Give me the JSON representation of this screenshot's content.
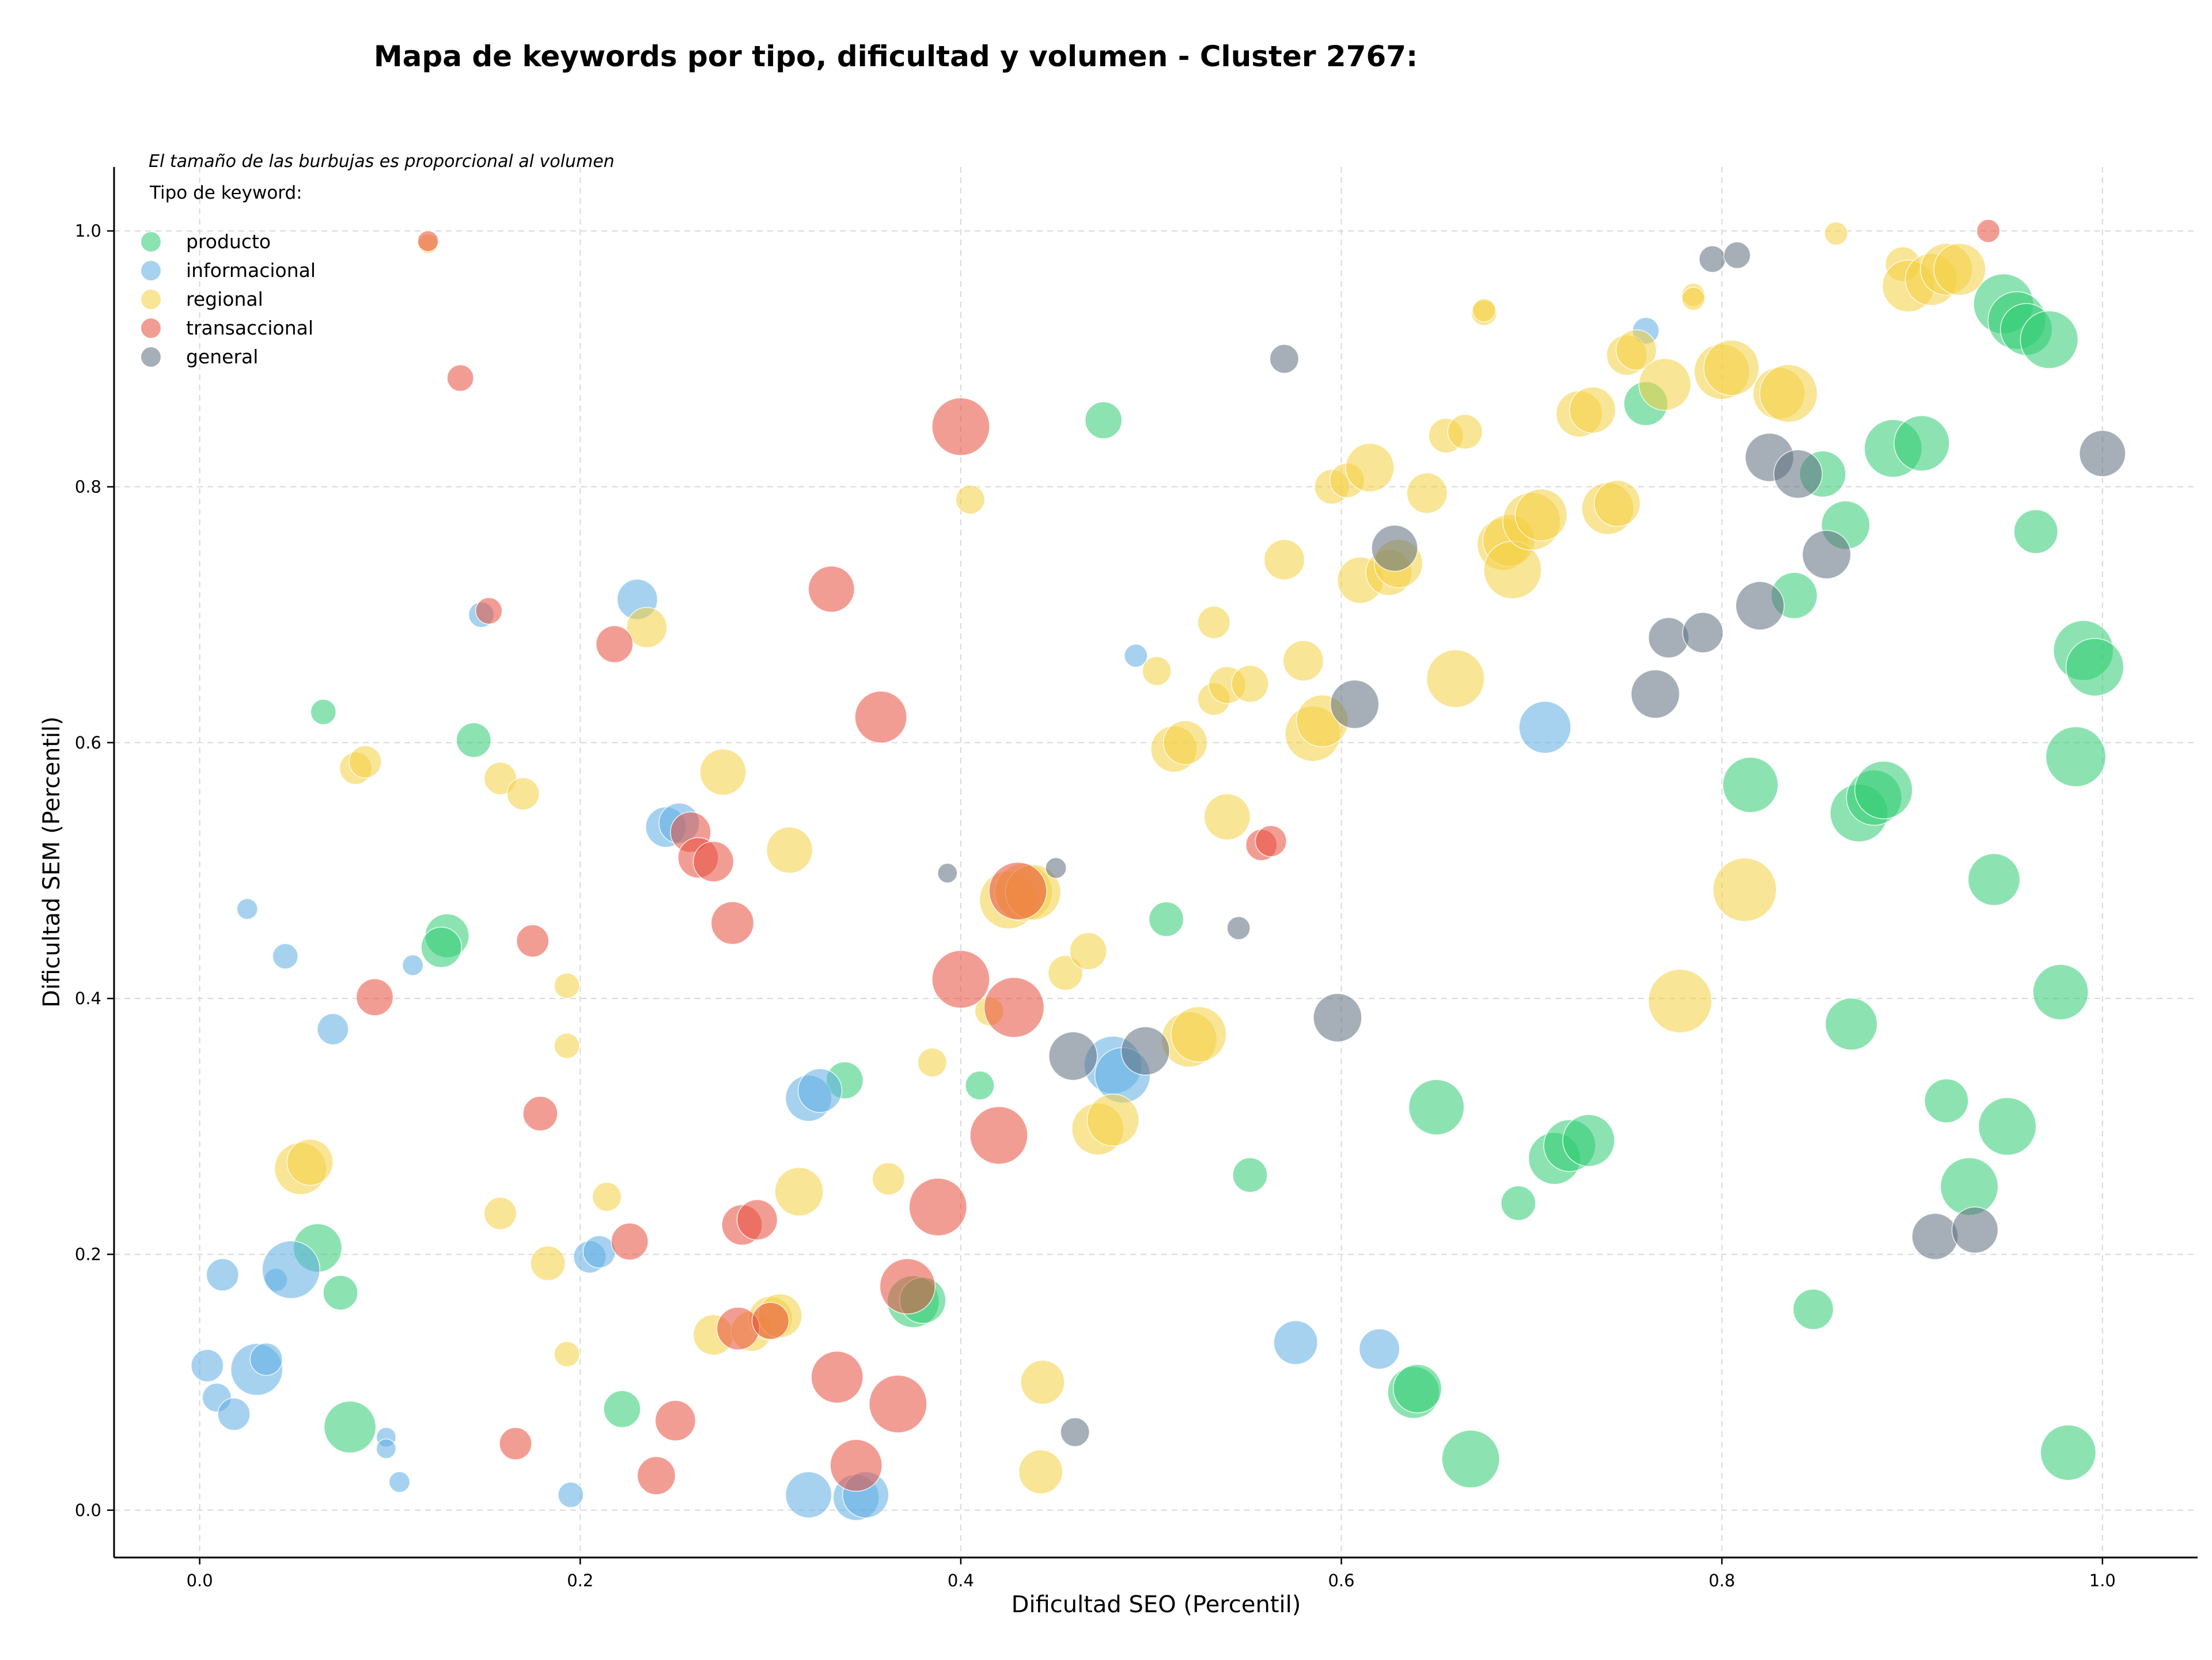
{
  "chart_data": {
    "type": "scatter",
    "title": "Mapa de keywords por tipo, dificultad y volumen - Cluster 2767:",
    "xlabel": "Dificultad SEO (Percentil)",
    "ylabel": "Dificultad SEM (Percentil)",
    "xlim": [
      -0.045,
      1.05
    ],
    "ylim": [
      -0.037,
      1.05
    ],
    "x_ticks": [
      "0.0",
      "0.2",
      "0.4",
      "0.6",
      "0.8",
      "1.0"
    ],
    "y_ticks": [
      "0.0",
      "0.2",
      "0.4",
      "0.6",
      "0.8",
      "1.0"
    ],
    "grid": true,
    "size_note": "El tamaño de las burbujas es proporcional al volumen",
    "legend_title": "Tipo de keyword:",
    "legend_position": "top-left",
    "series": [
      {
        "name": "producto",
        "color": "#2ecc71",
        "points": [
          [
            0.065,
            0.624,
            22
          ],
          [
            0.144,
            0.602,
            30
          ],
          [
            0.13,
            0.449,
            38
          ],
          [
            0.127,
            0.44,
            35
          ],
          [
            0.062,
            0.205,
            42
          ],
          [
            0.074,
            0.17,
            30
          ],
          [
            0.079,
            0.065,
            45
          ],
          [
            0.222,
            0.079,
            32
          ],
          [
            0.339,
            0.336,
            32
          ],
          [
            0.375,
            0.163,
            45
          ],
          [
            0.38,
            0.164,
            40
          ],
          [
            0.41,
            0.332,
            25
          ],
          [
            0.475,
            0.852,
            32
          ],
          [
            0.508,
            0.462,
            30
          ],
          [
            0.552,
            0.262,
            30
          ],
          [
            0.638,
            0.092,
            45
          ],
          [
            0.64,
            0.095,
            42
          ],
          [
            0.65,
            0.315,
            48
          ],
          [
            0.668,
            0.04,
            50
          ],
          [
            0.693,
            0.24,
            30
          ],
          [
            0.712,
            0.275,
            45
          ],
          [
            0.72,
            0.285,
            45
          ],
          [
            0.73,
            0.289,
            45
          ],
          [
            0.76,
            0.865,
            38
          ],
          [
            0.815,
            0.567,
            48
          ],
          [
            0.838,
            0.715,
            40
          ],
          [
            0.848,
            0.157,
            35
          ],
          [
            0.853,
            0.81,
            40
          ],
          [
            0.865,
            0.77,
            42
          ],
          [
            0.868,
            0.38,
            45
          ],
          [
            0.872,
            0.545,
            50
          ],
          [
            0.88,
            0.557,
            48
          ],
          [
            0.885,
            0.563,
            50
          ],
          [
            0.89,
            0.83,
            50
          ],
          [
            0.905,
            0.834,
            48
          ],
          [
            0.918,
            0.32,
            38
          ],
          [
            0.93,
            0.253,
            50
          ],
          [
            0.943,
            0.493,
            45
          ],
          [
            0.95,
            0.3,
            50
          ],
          [
            0.948,
            0.943,
            52
          ],
          [
            0.955,
            0.93,
            50
          ],
          [
            0.965,
            0.765,
            38
          ],
          [
            0.96,
            0.923,
            45
          ],
          [
            0.972,
            0.915,
            50
          ],
          [
            0.978,
            0.405,
            48
          ],
          [
            0.982,
            0.045,
            48
          ],
          [
            0.986,
            0.589,
            52
          ],
          [
            0.99,
            0.672,
            52
          ],
          [
            0.996,
            0.659,
            50
          ]
        ]
      },
      {
        "name": "informacional",
        "color": "#5dade2",
        "points": [
          [
            0.025,
            0.47,
            18
          ],
          [
            0.045,
            0.433,
            22
          ],
          [
            0.07,
            0.376,
            27
          ],
          [
            0.112,
            0.426,
            18
          ],
          [
            0.148,
            0.7,
            22
          ],
          [
            0.23,
            0.712,
            35
          ],
          [
            0.245,
            0.534,
            35
          ],
          [
            0.252,
            0.537,
            35
          ],
          [
            0.004,
            0.113,
            28
          ],
          [
            0.009,
            0.088,
            25
          ],
          [
            0.012,
            0.184,
            28
          ],
          [
            0.018,
            0.075,
            28
          ],
          [
            0.03,
            0.11,
            45
          ],
          [
            0.035,
            0.118,
            28
          ],
          [
            0.04,
            0.18,
            20
          ],
          [
            0.048,
            0.188,
            50
          ],
          [
            0.098,
            0.057,
            17
          ],
          [
            0.098,
            0.048,
            17
          ],
          [
            0.105,
            0.022,
            18
          ],
          [
            0.195,
            0.012,
            22
          ],
          [
            0.205,
            0.198,
            28
          ],
          [
            0.21,
            0.202,
            28
          ],
          [
            0.32,
            0.322,
            40
          ],
          [
            0.326,
            0.328,
            38
          ],
          [
            0.32,
            0.012,
            40
          ],
          [
            0.345,
            0.01,
            40
          ],
          [
            0.35,
            0.012,
            40
          ],
          [
            0.48,
            0.348,
            50
          ],
          [
            0.485,
            0.34,
            48
          ],
          [
            0.492,
            0.668,
            20
          ],
          [
            0.576,
            0.131,
            38
          ],
          [
            0.62,
            0.126,
            35
          ],
          [
            0.707,
            0.612,
            45
          ],
          [
            0.76,
            0.922,
            23
          ]
        ]
      },
      {
        "name": "regional",
        "color": "#f4d03f",
        "points": [
          [
            0.12,
            0.99,
            17
          ],
          [
            0.082,
            0.58,
            28
          ],
          [
            0.087,
            0.585,
            28
          ],
          [
            0.158,
            0.572,
            28
          ],
          [
            0.17,
            0.56,
            28
          ],
          [
            0.193,
            0.41,
            22
          ],
          [
            0.193,
            0.363,
            22
          ],
          [
            0.193,
            0.122,
            22
          ],
          [
            0.158,
            0.232,
            28
          ],
          [
            0.183,
            0.193,
            30
          ],
          [
            0.214,
            0.245,
            25
          ],
          [
            0.053,
            0.267,
            45
          ],
          [
            0.058,
            0.272,
            40
          ],
          [
            0.235,
            0.69,
            35
          ],
          [
            0.275,
            0.577,
            40
          ],
          [
            0.31,
            0.516,
            40
          ],
          [
            0.27,
            0.137,
            35
          ],
          [
            0.29,
            0.14,
            35
          ],
          [
            0.3,
            0.15,
            38
          ],
          [
            0.305,
            0.152,
            38
          ],
          [
            0.315,
            0.249,
            42
          ],
          [
            0.362,
            0.259,
            28
          ],
          [
            0.385,
            0.35,
            25
          ],
          [
            0.405,
            0.79,
            25
          ],
          [
            0.415,
            0.39,
            25
          ],
          [
            0.425,
            0.477,
            50
          ],
          [
            0.433,
            0.483,
            50
          ],
          [
            0.438,
            0.483,
            48
          ],
          [
            0.442,
            0.03,
            38
          ],
          [
            0.443,
            0.1,
            38
          ],
          [
            0.455,
            0.42,
            30
          ],
          [
            0.467,
            0.437,
            32
          ],
          [
            0.472,
            0.298,
            45
          ],
          [
            0.48,
            0.305,
            45
          ],
          [
            0.503,
            0.656,
            25
          ],
          [
            0.512,
            0.595,
            40
          ],
          [
            0.518,
            0.6,
            38
          ],
          [
            0.52,
            0.368,
            48
          ],
          [
            0.525,
            0.372,
            48
          ],
          [
            0.533,
            0.694,
            28
          ],
          [
            0.533,
            0.634,
            28
          ],
          [
            0.54,
            0.542,
            40
          ],
          [
            0.54,
            0.645,
            32
          ],
          [
            0.552,
            0.646,
            32
          ],
          [
            0.57,
            0.743,
            35
          ],
          [
            0.58,
            0.664,
            35
          ],
          [
            0.585,
            0.607,
            48
          ],
          [
            0.59,
            0.617,
            45
          ],
          [
            0.595,
            0.8,
            30
          ],
          [
            0.603,
            0.805,
            30
          ],
          [
            0.61,
            0.727,
            40
          ],
          [
            0.615,
            0.815,
            42
          ],
          [
            0.625,
            0.733,
            40
          ],
          [
            0.63,
            0.74,
            42
          ],
          [
            0.645,
            0.795,
            35
          ],
          [
            0.655,
            0.84,
            30
          ],
          [
            0.66,
            0.65,
            50
          ],
          [
            0.665,
            0.843,
            30
          ],
          [
            0.675,
            0.936,
            22
          ],
          [
            0.675,
            0.938,
            20
          ],
          [
            0.685,
            0.755,
            45
          ],
          [
            0.688,
            0.758,
            45
          ],
          [
            0.69,
            0.735,
            50
          ],
          [
            0.7,
            0.773,
            50
          ],
          [
            0.705,
            0.778,
            45
          ],
          [
            0.725,
            0.857,
            40
          ],
          [
            0.732,
            0.86,
            40
          ],
          [
            0.74,
            0.783,
            45
          ],
          [
            0.745,
            0.787,
            40
          ],
          [
            0.75,
            0.903,
            35
          ],
          [
            0.755,
            0.907,
            35
          ],
          [
            0.77,
            0.88,
            45
          ],
          [
            0.778,
            0.398,
            55
          ],
          [
            0.785,
            0.95,
            20
          ],
          [
            0.785,
            0.947,
            20
          ],
          [
            0.8,
            0.89,
            48
          ],
          [
            0.805,
            0.893,
            48
          ],
          [
            0.812,
            0.485,
            55
          ],
          [
            0.83,
            0.873,
            45
          ],
          [
            0.835,
            0.873,
            50
          ],
          [
            0.86,
            0.998,
            20
          ],
          [
            0.895,
            0.974,
            30
          ],
          [
            0.898,
            0.957,
            45
          ],
          [
            0.91,
            0.962,
            45
          ],
          [
            0.918,
            0.97,
            45
          ],
          [
            0.925,
            0.97,
            45
          ]
        ]
      },
      {
        "name": "transaccional",
        "color": "#e74c3c",
        "points": [
          [
            0.12,
            0.992,
            18
          ],
          [
            0.137,
            0.885,
            23
          ],
          [
            0.152,
            0.703,
            23
          ],
          [
            0.092,
            0.401,
            32
          ],
          [
            0.175,
            0.445,
            28
          ],
          [
            0.179,
            0.31,
            30
          ],
          [
            0.166,
            0.052,
            28
          ],
          [
            0.218,
            0.677,
            32
          ],
          [
            0.226,
            0.21,
            32
          ],
          [
            0.24,
            0.027,
            33
          ],
          [
            0.25,
            0.07,
            35
          ],
          [
            0.258,
            0.53,
            35
          ],
          [
            0.262,
            0.51,
            35
          ],
          [
            0.27,
            0.507,
            35
          ],
          [
            0.28,
            0.459,
            37
          ],
          [
            0.285,
            0.223,
            35
          ],
          [
            0.293,
            0.227,
            35
          ],
          [
            0.283,
            0.142,
            37
          ],
          [
            0.3,
            0.148,
            32
          ],
          [
            0.332,
            0.72,
            40
          ],
          [
            0.335,
            0.104,
            45
          ],
          [
            0.345,
            0.035,
            45
          ],
          [
            0.358,
            0.62,
            45
          ],
          [
            0.367,
            0.083,
            50
          ],
          [
            0.372,
            0.175,
            48
          ],
          [
            0.388,
            0.237,
            50
          ],
          [
            0.4,
            0.847,
            50
          ],
          [
            0.4,
            0.415,
            50
          ],
          [
            0.42,
            0.293,
            50
          ],
          [
            0.428,
            0.393,
            52
          ],
          [
            0.43,
            0.484,
            50
          ],
          [
            0.558,
            0.52,
            27
          ],
          [
            0.563,
            0.523,
            27
          ],
          [
            0.94,
            1.0,
            20
          ]
        ]
      },
      {
        "name": "general",
        "color": "#5d6d7e",
        "points": [
          [
            0.393,
            0.498,
            17
          ],
          [
            0.45,
            0.502,
            18
          ],
          [
            0.46,
            0.061,
            25
          ],
          [
            0.459,
            0.355,
            42
          ],
          [
            0.497,
            0.359,
            42
          ],
          [
            0.546,
            0.455,
            20
          ],
          [
            0.57,
            0.9,
            25
          ],
          [
            0.598,
            0.385,
            42
          ],
          [
            0.607,
            0.63,
            42
          ],
          [
            0.628,
            0.752,
            40
          ],
          [
            0.765,
            0.638,
            42
          ],
          [
            0.772,
            0.682,
            35
          ],
          [
            0.79,
            0.686,
            35
          ],
          [
            0.795,
            0.978,
            23
          ],
          [
            0.808,
            0.981,
            23
          ],
          [
            0.82,
            0.707,
            42
          ],
          [
            0.825,
            0.823,
            42
          ],
          [
            0.84,
            0.81,
            42
          ],
          [
            0.855,
            0.747,
            42
          ],
          [
            0.912,
            0.214,
            40
          ],
          [
            0.933,
            0.219,
            40
          ],
          [
            1.0,
            0.826,
            40
          ]
        ]
      }
    ]
  }
}
